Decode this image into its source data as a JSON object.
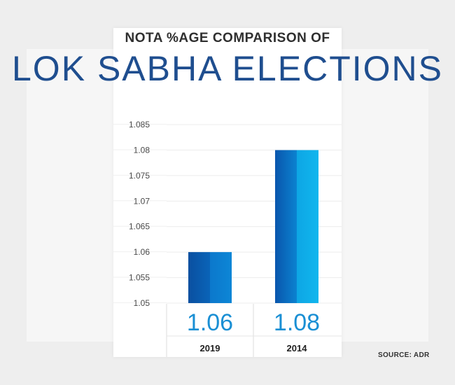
{
  "header": {
    "subtitle": "NOTA %AGE COMPARISON OF",
    "title": "LOK SABHA ELECTIONS"
  },
  "source": "SOURCE: ADR",
  "colors": {
    "title": "#1f4e8f",
    "bar_dark": "#0a56a8",
    "bar_light": "#0fb1ea",
    "value_label": "#1a8fd4"
  },
  "chart_data": {
    "type": "bar",
    "title": "NOTA %AGE COMPARISON OF LOK SABHA ELECTIONS",
    "categories": [
      "2019",
      "2014"
    ],
    "values": [
      1.06,
      1.08
    ],
    "value_labels": [
      "1.06",
      "1.08"
    ],
    "ylim": [
      1.05,
      1.085
    ],
    "yticks": [
      "1.085",
      "1.08",
      "1.075",
      "1.07",
      "1.065",
      "1.06",
      "1.055",
      "1.05"
    ],
    "xlabel": "",
    "ylabel": "",
    "grid": true
  }
}
